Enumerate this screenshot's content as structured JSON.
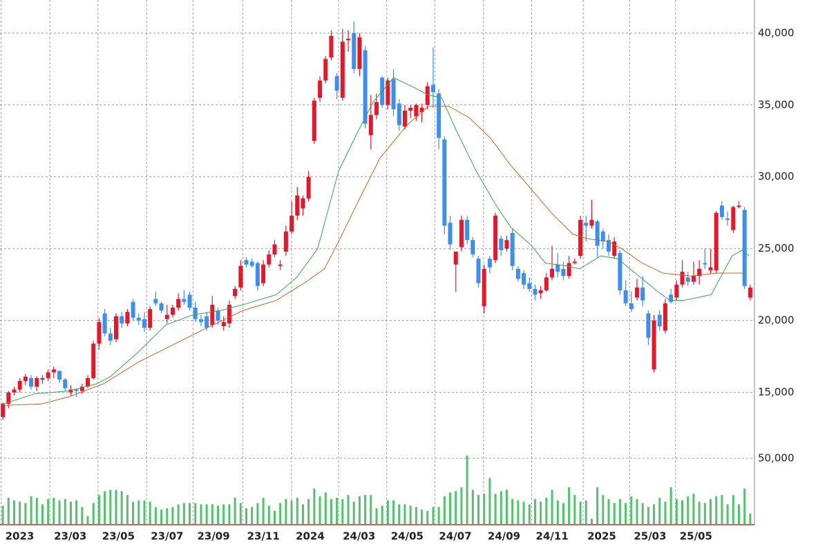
{
  "chart_data": {
    "type": "candlestick",
    "up_color": "#e8162a",
    "down_color": "#3a8ff0",
    "grid": true,
    "xlim": [
      0,
      133
    ],
    "xticks": [
      {
        "value": -0.3,
        "label": "2023"
      },
      {
        "value": 8.3,
        "label": "23/03"
      },
      {
        "value": 16.8,
        "label": "23/05"
      },
      {
        "value": 25.4,
        "label": "23/07"
      },
      {
        "value": 33.6,
        "label": "23/09"
      },
      {
        "value": 42.4,
        "label": "23/11"
      },
      {
        "value": 51,
        "label": "2024"
      },
      {
        "value": 59.3,
        "label": "24/03"
      },
      {
        "value": 67.8,
        "label": "24/05"
      },
      {
        "value": 76.3,
        "label": "24/07"
      },
      {
        "value": 84.9,
        "label": "24/09"
      },
      {
        "value": 93.4,
        "label": "24/11"
      },
      {
        "value": 102.5,
        "label": "2025"
      },
      {
        "value": 110.7,
        "label": "25/03"
      },
      {
        "value": 118.8,
        "label": "25/05"
      }
    ],
    "ylim": [
      12000,
      42300
    ],
    "yticks": [
      {
        "value": 15000,
        "label": "15,000"
      },
      {
        "value": 20000,
        "label": "20,000"
      },
      {
        "value": 25000,
        "label": "25,000"
      },
      {
        "value": 30000,
        "label": "30,000"
      },
      {
        "value": 35000,
        "label": "35,000"
      },
      {
        "value": 40000,
        "label": "40,000"
      }
    ],
    "candles": [
      [
        13300,
        14300,
        13100,
        14200
      ],
      [
        14200,
        15100,
        13900,
        15000
      ],
      [
        15000,
        15400,
        14800,
        15200
      ],
      [
        15200,
        16000,
        15000,
        15800
      ],
      [
        15800,
        16300,
        15500,
        16100
      ],
      [
        16000,
        16200,
        15200,
        15400
      ],
      [
        15400,
        16100,
        15100,
        16000
      ],
      [
        15900,
        16200,
        15600,
        16000
      ],
      [
        16000,
        16600,
        15800,
        16400
      ],
      [
        16400,
        16800,
        16000,
        16600
      ],
      [
        16500,
        16500,
        15700,
        15900
      ],
      [
        15900,
        16000,
        15100,
        15300
      ],
      [
        15000,
        15500,
        14800,
        15200
      ],
      [
        15200,
        15300,
        14700,
        15100
      ],
      [
        15100,
        15600,
        14900,
        15400
      ],
      [
        15400,
        16200,
        15300,
        16000
      ],
      [
        16000,
        18600,
        15900,
        18400
      ],
      [
        18400,
        20200,
        18000,
        19900
      ],
      [
        20500,
        20800,
        18900,
        19100
      ],
      [
        19100,
        19500,
        18300,
        18600
      ],
      [
        18700,
        20500,
        18500,
        20300
      ],
      [
        20300,
        20600,
        19500,
        19800
      ],
      [
        19800,
        20800,
        19600,
        20600
      ],
      [
        21300,
        21500,
        20000,
        20200
      ],
      [
        20200,
        20500,
        19700,
        20000
      ],
      [
        20100,
        20600,
        19200,
        19500
      ],
      [
        19500,
        21000,
        19300,
        20800
      ],
      [
        21500,
        22000,
        21000,
        21200
      ],
      [
        21200,
        21300,
        20500,
        20700
      ],
      [
        20100,
        21100,
        19800,
        20400
      ],
      [
        20400,
        21100,
        20200,
        20900
      ],
      [
        20900,
        21900,
        20700,
        21500
      ],
      [
        21500,
        22100,
        21100,
        21300
      ],
      [
        21800,
        22000,
        20700,
        20900
      ],
      [
        20900,
        21300,
        19900,
        20100
      ],
      [
        20100,
        20400,
        19600,
        19900
      ],
      [
        20300,
        20600,
        19300,
        19500
      ],
      [
        19700,
        21700,
        19500,
        21100
      ],
      [
        20700,
        20900,
        19700,
        20000
      ],
      [
        19600,
        20300,
        19300,
        19900
      ],
      [
        19800,
        21400,
        19500,
        21100
      ],
      [
        21700,
        22400,
        21500,
        22200
      ],
      [
        22300,
        24200,
        22100,
        23800
      ],
      [
        24200,
        24400,
        23700,
        23900
      ],
      [
        24100,
        24300,
        23700,
        23800
      ],
      [
        24000,
        24100,
        22100,
        22400
      ],
      [
        22600,
        24200,
        22400,
        23900
      ],
      [
        23900,
        24900,
        23700,
        24600
      ],
      [
        24600,
        25600,
        24400,
        25300
      ],
      [
        23800,
        24200,
        23500,
        23900
      ],
      [
        24800,
        26600,
        24500,
        26200
      ],
      [
        26200,
        28300,
        26000,
        27300
      ],
      [
        27300,
        29300,
        27000,
        28700
      ],
      [
        27800,
        28700,
        27300,
        28500
      ],
      [
        28500,
        30400,
        28300,
        30000
      ],
      [
        32500,
        35500,
        32300,
        35300
      ],
      [
        35500,
        37000,
        35200,
        36700
      ],
      [
        36700,
        38400,
        36500,
        38200
      ],
      [
        38300,
        40200,
        38100,
        39800
      ],
      [
        37000,
        37200,
        35400,
        36000
      ],
      [
        35500,
        40300,
        35300,
        39400
      ],
      [
        39500,
        40200,
        38700,
        39600
      ],
      [
        40000,
        40800,
        37200,
        37500
      ],
      [
        37500,
        40000,
        37000,
        39700
      ],
      [
        38800,
        39100,
        33400,
        33700
      ],
      [
        32900,
        35700,
        31900,
        34300
      ],
      [
        34300,
        35800,
        34000,
        35200
      ],
      [
        36900,
        37000,
        34800,
        35000
      ],
      [
        35000,
        36900,
        34700,
        36700
      ],
      [
        36800,
        37500,
        34200,
        34700
      ],
      [
        35100,
        35400,
        33200,
        33600
      ],
      [
        33500,
        35000,
        33300,
        34600
      ],
      [
        34600,
        35000,
        34100,
        34800
      ],
      [
        34200,
        35100,
        33900,
        35000
      ],
      [
        34500,
        35100,
        33800,
        34800
      ],
      [
        35000,
        36600,
        34700,
        36300
      ],
      [
        36400,
        39000,
        34800,
        35900
      ],
      [
        35800,
        36100,
        31900,
        32700
      ],
      [
        32600,
        32800,
        26000,
        26600
      ],
      [
        26800,
        27300,
        24900,
        25300
      ],
      [
        23900,
        24700,
        22000,
        24800
      ],
      [
        25100,
        27300,
        24800,
        27000
      ],
      [
        27000,
        27300,
        25300,
        25600
      ],
      [
        25600,
        25800,
        24400,
        24600
      ],
      [
        24300,
        24500,
        22300,
        22600
      ],
      [
        21000,
        23900,
        20500,
        23600
      ],
      [
        24300,
        24500,
        23300,
        23700
      ],
      [
        24200,
        27500,
        24000,
        27300
      ],
      [
        25700,
        25900,
        24500,
        24900
      ],
      [
        25000,
        25900,
        24800,
        25600
      ],
      [
        26100,
        26400,
        23500,
        23800
      ],
      [
        23600,
        23800,
        22700,
        22900
      ],
      [
        23300,
        23500,
        22200,
        22500
      ],
      [
        22600,
        23000,
        22000,
        22200
      ],
      [
        22200,
        22500,
        21400,
        21800
      ],
      [
        21900,
        22400,
        21500,
        22100
      ],
      [
        22100,
        23300,
        22000,
        23000
      ],
      [
        23000,
        25200,
        22800,
        23600
      ],
      [
        23900,
        24700,
        23000,
        23400
      ],
      [
        23600,
        24100,
        22800,
        23100
      ],
      [
        23100,
        24500,
        22900,
        24000
      ],
      [
        24000,
        24300,
        23900,
        24100
      ],
      [
        24500,
        27300,
        24300,
        27000
      ],
      [
        26800,
        27300,
        25500,
        26600
      ],
      [
        26600,
        28400,
        26400,
        27000
      ],
      [
        26900,
        27000,
        24400,
        25200
      ],
      [
        26200,
        26400,
        25000,
        25500
      ],
      [
        25600,
        26000,
        24500,
        24800
      ],
      [
        24500,
        25800,
        24300,
        25500
      ],
      [
        24700,
        24900,
        21800,
        22100
      ],
      [
        22100,
        22800,
        21000,
        21200
      ],
      [
        21200,
        22000,
        20600,
        20800
      ],
      [
        21600,
        22900,
        21400,
        22300
      ],
      [
        22300,
        23100,
        21000,
        21400
      ],
      [
        20500,
        20700,
        18300,
        18800
      ],
      [
        16600,
        20400,
        16400,
        20000
      ],
      [
        20400,
        20700,
        19300,
        19600
      ],
      [
        19300,
        21500,
        19100,
        21200
      ],
      [
        21800,
        22200,
        21200,
        21300
      ],
      [
        21600,
        22800,
        21400,
        22500
      ],
      [
        22500,
        24200,
        22300,
        23400
      ],
      [
        23000,
        23400,
        22400,
        22700
      ],
      [
        22700,
        24100,
        22500,
        23100
      ],
      [
        23100,
        24200,
        22500,
        23600
      ],
      [
        24000,
        25000,
        23600,
        23900
      ],
      [
        23500,
        25000,
        23300,
        23700
      ],
      [
        23500,
        27600,
        23300,
        27500
      ],
      [
        28000,
        28300,
        27000,
        27200
      ],
      [
        27100,
        27600,
        26600,
        27000
      ],
      [
        26300,
        28000,
        26100,
        27900
      ],
      [
        27900,
        28300,
        27800,
        28000
      ],
      [
        27700,
        27900,
        22200,
        22400
      ],
      [
        21600,
        22500,
        21400,
        22300
      ]
    ],
    "lines": [
      {
        "color": "#2fa84f",
        "x": [
          0.1,
          5.6,
          11.7,
          16.6,
          19,
          23.9,
          28.8,
          33.6,
          38.5,
          42.4,
          48.3,
          51.9,
          55.6,
          59.3,
          62.9,
          65.4,
          69,
          72.7,
          75.1,
          77.5,
          80,
          83.6,
          87.3,
          89.7,
          93.4,
          95.8,
          99.5,
          101.9,
          105.6,
          108.6,
          111.7,
          115.4,
          117.8,
          120.2,
          122.7,
          125.1,
          128.8,
          130.6,
          131.8
        ],
        "values": [
          14200,
          14900,
          15100,
          15600,
          16100,
          17800,
          19700,
          20400,
          20700,
          21100,
          21800,
          23000,
          25000,
          30400,
          33300,
          35200,
          36900,
          36200,
          35700,
          35500,
          33300,
          30400,
          27900,
          26500,
          25200,
          24000,
          23800,
          23600,
          24500,
          24300,
          23300,
          22100,
          21400,
          21400,
          21600,
          21800,
          24500,
          24900,
          24500
        ]
      },
      {
        "color": "#c8641e",
        "x": [
          0,
          6.8,
          11.7,
          17.8,
          23.9,
          30,
          36.1,
          42.4,
          48.3,
          53.2,
          56.8,
          59.3,
          62.9,
          66.6,
          71.4,
          75.1,
          78.8,
          82.4,
          86.1,
          89.7,
          93.4,
          97.1,
          100.7,
          103.2,
          106.8,
          109.3,
          112.9,
          116.6,
          121.5,
          126.3,
          131.2
        ],
        "values": [
          14100,
          14200,
          14700,
          15600,
          17100,
          18300,
          19500,
          20700,
          21400,
          22600,
          23600,
          25500,
          28400,
          31300,
          33600,
          34900,
          34900,
          34100,
          32700,
          30800,
          29100,
          27400,
          26000,
          25700,
          25500,
          25000,
          24000,
          23300,
          23100,
          23300,
          23300
        ]
      }
    ],
    "volume": {
      "color": "#4fc26b",
      "ylim": [
        0,
        62000
      ],
      "yticks": [
        {
          "value": 50000,
          "label": "50,000"
        }
      ],
      "values": [
        14000,
        20000,
        18000,
        17000,
        16000,
        21000,
        20000,
        15000,
        19000,
        20000,
        18000,
        19000,
        17000,
        18000,
        13000,
        6000,
        16000,
        22000,
        25000,
        26000,
        26000,
        25000,
        22000,
        17000,
        18000,
        18000,
        17000,
        13000,
        11000,
        12000,
        13000,
        15000,
        16000,
        16000,
        16000,
        15000,
        15000,
        15000,
        14000,
        15000,
        15000,
        20000,
        16000,
        12000,
        13000,
        16000,
        20000,
        14000,
        10000,
        16000,
        19000,
        18000,
        20000,
        15000,
        19000,
        27000,
        21000,
        24000,
        19000,
        20000,
        19000,
        22000,
        17000,
        21000,
        22000,
        22000,
        12000,
        14000,
        18000,
        18000,
        15000,
        15000,
        14000,
        13000,
        11000,
        10000,
        13000,
        13000,
        21000,
        24000,
        25000,
        28000,
        52000,
        26000,
        22000,
        23000,
        35000,
        23000,
        25000,
        26000,
        19000,
        18000,
        17000,
        15000,
        19000,
        17000,
        20000,
        26000,
        18000,
        16000,
        28000,
        22000,
        17000,
        18000,
        4000,
        28000,
        22000,
        19000,
        16000,
        19000,
        16000,
        21000,
        19000,
        16000,
        13000,
        15000,
        20000,
        17000,
        28000,
        19000,
        18000,
        21000,
        23000,
        17000,
        16000,
        19000,
        21000,
        22000,
        15000,
        22000,
        15000,
        27000,
        8000
      ]
    }
  }
}
